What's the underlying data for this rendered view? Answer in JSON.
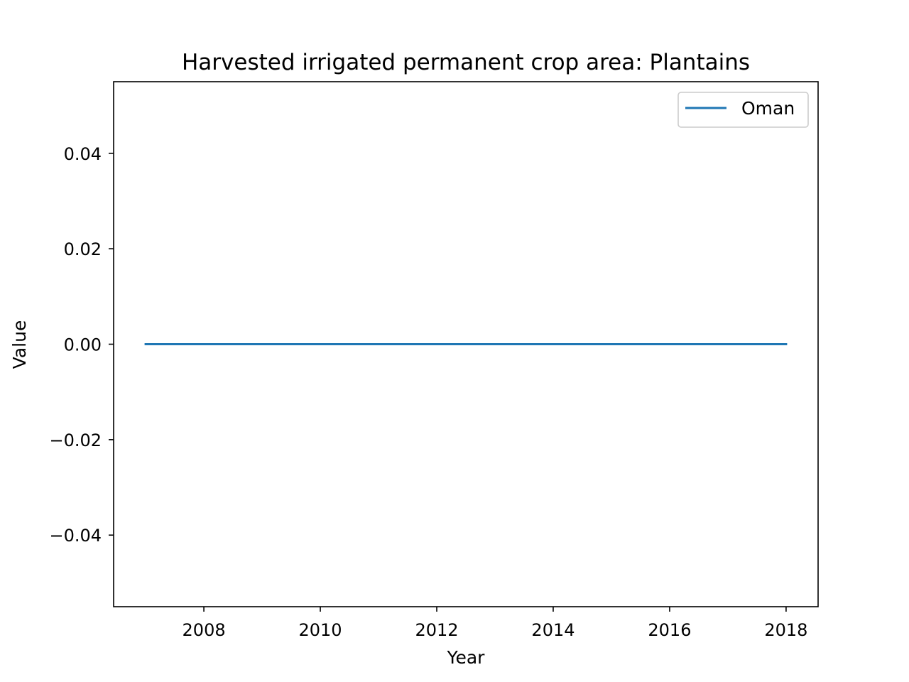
{
  "chart_data": {
    "type": "line",
    "title": "Harvested irrigated permanent crop area: Plantains",
    "xlabel": "Year",
    "ylabel": "Value",
    "xlim": [
      2006.45,
      2018.55
    ],
    "ylim": [
      -0.055,
      0.055
    ],
    "x_ticks": [
      2008,
      2010,
      2012,
      2014,
      2016,
      2018
    ],
    "x_tick_labels": [
      "2008",
      "2010",
      "2012",
      "2014",
      "2016",
      "2018"
    ],
    "y_ticks": [
      -0.04,
      -0.02,
      0.0,
      0.02,
      0.04
    ],
    "y_tick_labels": [
      "−0.04",
      "−0.02",
      "0.00",
      "0.02",
      "0.04"
    ],
    "grid": false,
    "legend_position": "top-right",
    "series": [
      {
        "name": "Oman",
        "color": "#1f77b4",
        "x": [
          2007,
          2008,
          2009,
          2010,
          2011,
          2012,
          2013,
          2014,
          2015,
          2016,
          2017,
          2018
        ],
        "y": [
          0,
          0,
          0,
          0,
          0,
          0,
          0,
          0,
          0,
          0,
          0,
          0
        ]
      }
    ]
  }
}
